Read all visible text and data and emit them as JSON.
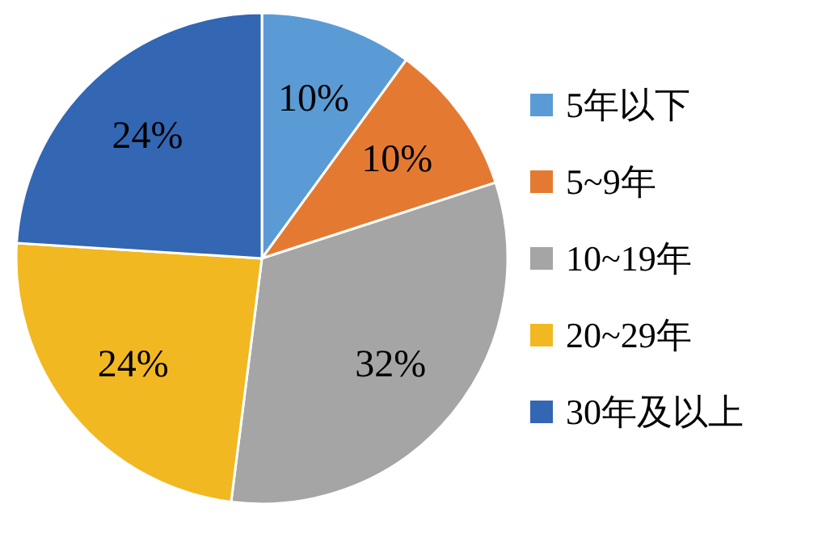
{
  "chart_data": {
    "type": "pie",
    "categories": [
      "5年以下",
      "5~9年",
      "10~19年",
      "20~29年",
      "30年及以上"
    ],
    "values": [
      10,
      10,
      32,
      24,
      24
    ],
    "colors": [
      "#5b9bd5",
      "#e47a32",
      "#a5a5a5",
      "#f2b821",
      "#3366b3"
    ],
    "value_labels": [
      "10%",
      "10%",
      "32%",
      "24%",
      "24%"
    ],
    "legend": "right"
  }
}
